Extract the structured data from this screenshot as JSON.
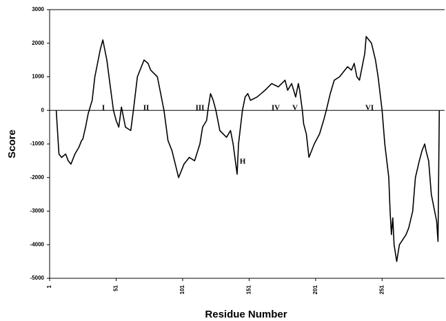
{
  "chart_data": {
    "type": "line",
    "x_label": "Residue Number",
    "y_label": "Score",
    "annotations": [
      "I",
      "II",
      "III",
      "IV",
      "V",
      "VI",
      "H"
    ],
    "xlim": [
      1,
      298
    ],
    "xticks": [
      1,
      51,
      101,
      151,
      201,
      251
    ],
    "ylim": [
      -5000,
      3000
    ],
    "yticks": [
      -5000,
      -4000,
      -3000,
      -2000,
      -1000,
      0,
      1000,
      2000,
      3000
    ],
    "x": [
      6,
      8,
      10,
      13,
      15,
      17,
      20,
      23,
      25,
      26,
      28,
      30,
      33,
      35,
      37,
      39,
      41,
      42,
      44,
      46,
      49,
      51,
      53,
      55,
      58,
      62,
      64,
      67,
      72,
      75,
      77,
      82,
      87,
      90,
      93,
      98,
      102,
      106,
      110,
      114,
      116,
      119,
      120,
      122,
      124,
      126,
      129,
      134,
      137,
      139,
      142,
      143,
      146,
      148,
      150,
      152,
      157,
      163,
      168,
      173,
      178,
      180,
      183,
      186,
      188,
      189,
      191,
      192,
      194,
      196,
      200,
      204,
      207,
      209,
      212,
      215,
      219,
      225,
      228,
      230,
      232,
      234,
      237,
      238,
      239,
      243,
      246,
      248,
      251,
      253,
      256,
      257,
      258,
      259,
      260,
      262,
      264,
      269,
      271,
      274,
      276,
      279,
      281,
      283,
      284,
      286,
      288,
      289,
      292,
      293,
      294
    ],
    "series": [
      {
        "color": "#000000",
        "values": [
          0,
          -1300,
          -1400,
          -1300,
          -1500,
          -1600,
          -1300,
          -1100,
          -900,
          -850,
          -500,
          -100,
          300,
          1000,
          1400,
          1800,
          2100,
          1900,
          1500,
          900,
          0,
          -300,
          -500,
          100,
          -500,
          -600,
          0,
          1000,
          1500,
          1400,
          1200,
          1000,
          0,
          -900,
          -1200,
          -2000,
          -1600,
          -1400,
          -1500,
          -1000,
          -500,
          -300,
          0,
          500,
          300,
          0,
          -600,
          -800,
          -600,
          -1000,
          -1900,
          -1000,
          0,
          400,
          500,
          300,
          400,
          600,
          800,
          700,
          900,
          600,
          800,
          400,
          800,
          600,
          0,
          -400,
          -700,
          -1400,
          -1000,
          -700,
          -300,
          0,
          500,
          900,
          1000,
          1300,
          1200,
          1400,
          1000,
          900,
          1500,
          1700,
          2200,
          2000,
          1500,
          1000,
          0,
          -1000,
          -2000,
          -3000,
          -3700,
          -3200,
          -4000,
          -4500,
          -4000,
          -3700,
          -3500,
          -3000,
          -2000,
          -1500,
          -1200,
          -1000,
          -1200,
          -1500,
          -2500,
          -2700,
          -3300,
          -3900,
          0
        ]
      }
    ]
  }
}
